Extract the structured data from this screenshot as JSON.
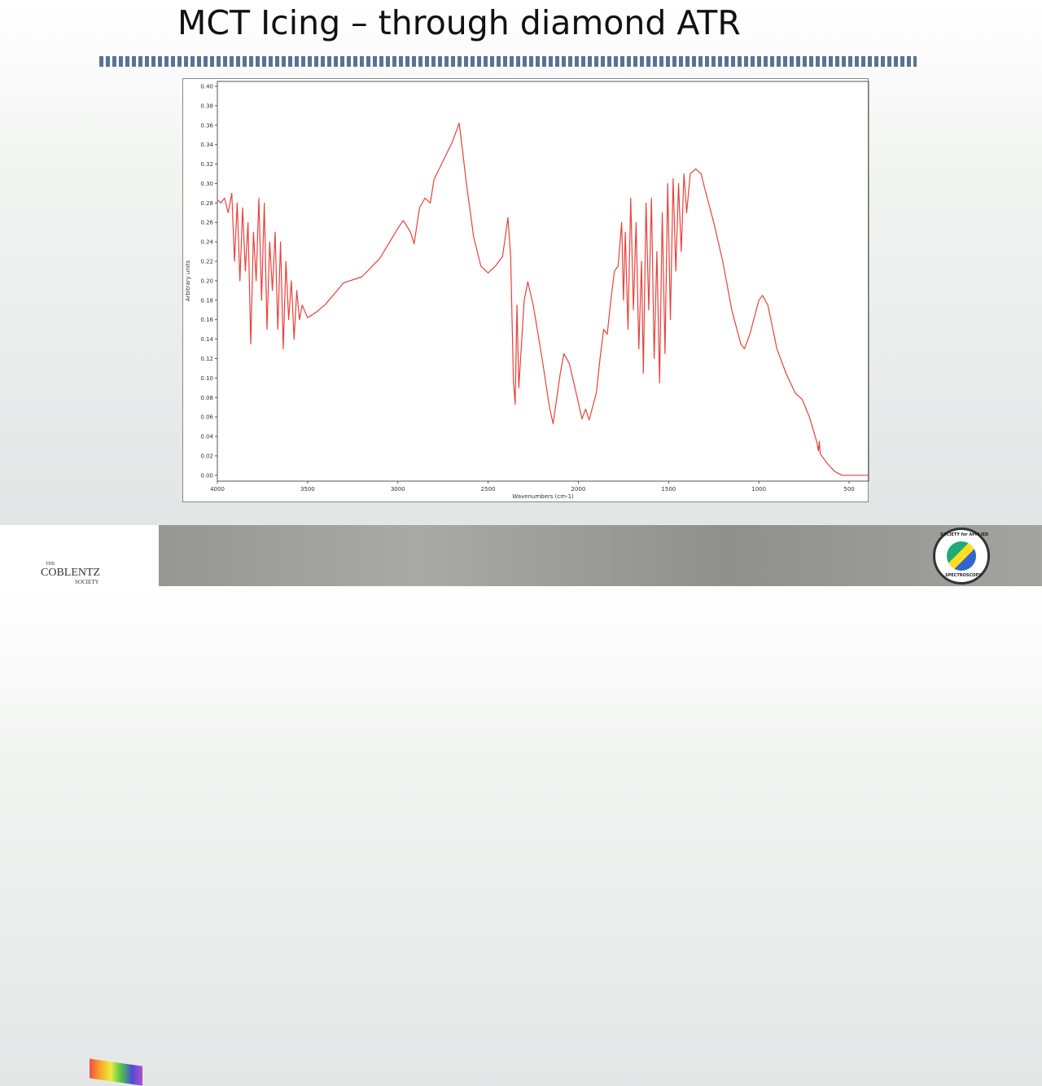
{
  "title": "MCT Icing – through diamond ATR",
  "footer": {
    "left_logo": [
      "THE",
      "COBLENTZ",
      "SOCIETY"
    ],
    "right_logo": [
      "SOCIETY for APPLIED",
      "SPECTROSCOPY"
    ]
  },
  "chart_data": {
    "type": "line",
    "x_label": "Wavenumbers (cm-1)",
    "y_label": "Arbitrary units",
    "color": "#e8413a",
    "xlim": [
      4000,
      392
    ],
    "xticks": [
      4000,
      3500,
      3000,
      2500,
      2000,
      1500,
      1000,
      500
    ],
    "ylim": [
      -0.006,
      0.405
    ],
    "yticks": [
      {
        "value": 0,
        "label": "0.00"
      },
      0.02,
      0.04,
      0.06,
      0.08,
      {
        "value": 0.1,
        "label": "0.10"
      },
      0.12,
      0.14,
      0.16,
      0.18,
      {
        "value": 0.2,
        "label": "0.20"
      },
      0.22,
      0.24,
      0.26,
      0.28,
      {
        "value": 0.3,
        "label": "0.30"
      },
      0.32,
      0.34,
      0.36,
      0.38,
      {
        "value": 0.4,
        "label": "0.40"
      }
    ],
    "x": [
      4000,
      3980,
      3960,
      3940,
      3920,
      3905,
      3890,
      3875,
      3860,
      3845,
      3830,
      3815,
      3800,
      3785,
      3770,
      3755,
      3740,
      3725,
      3710,
      3695,
      3680,
      3665,
      3650,
      3635,
      3620,
      3605,
      3590,
      3575,
      3560,
      3545,
      3530,
      3500,
      3450,
      3400,
      3300,
      3200,
      3100,
      3000,
      2970,
      2930,
      2910,
      2880,
      2850,
      2820,
      2800,
      2700,
      2660,
      2620,
      2580,
      2540,
      2500,
      2460,
      2420,
      2390,
      2375,
      2360,
      2350,
      2340,
      2330,
      2300,
      2280,
      2250,
      2200,
      2160,
      2140,
      2100,
      2080,
      2050,
      2000,
      1980,
      1960,
      1940,
      1900,
      1880,
      1860,
      1840,
      1820,
      1800,
      1780,
      1760,
      1750,
      1740,
      1725,
      1710,
      1695,
      1680,
      1665,
      1650,
      1640,
      1625,
      1610,
      1595,
      1580,
      1565,
      1550,
      1535,
      1520,
      1505,
      1490,
      1475,
      1460,
      1445,
      1430,
      1415,
      1400,
      1380,
      1350,
      1320,
      1300,
      1250,
      1200,
      1150,
      1100,
      1080,
      1050,
      1000,
      980,
      950,
      900,
      850,
      800,
      760,
      720,
      680,
      670,
      665,
      660,
      620,
      580,
      540,
      500,
      450,
      392
    ],
    "values": [
      0.283,
      0.28,
      0.285,
      0.27,
      0.29,
      0.22,
      0.28,
      0.2,
      0.275,
      0.21,
      0.26,
      0.135,
      0.25,
      0.2,
      0.285,
      0.18,
      0.28,
      0.15,
      0.24,
      0.19,
      0.25,
      0.15,
      0.24,
      0.13,
      0.22,
      0.16,
      0.2,
      0.14,
      0.19,
      0.16,
      0.175,
      0.162,
      0.168,
      0.176,
      0.198,
      0.204,
      0.223,
      0.254,
      0.262,
      0.25,
      0.238,
      0.275,
      0.285,
      0.28,
      0.304,
      0.342,
      0.362,
      0.3,
      0.245,
      0.215,
      0.208,
      0.215,
      0.225,
      0.265,
      0.225,
      0.098,
      0.073,
      0.175,
      0.09,
      0.18,
      0.199,
      0.175,
      0.119,
      0.07,
      0.053,
      0.105,
      0.125,
      0.115,
      0.075,
      0.058,
      0.068,
      0.057,
      0.085,
      0.12,
      0.15,
      0.145,
      0.18,
      0.21,
      0.215,
      0.26,
      0.18,
      0.25,
      0.15,
      0.285,
      0.17,
      0.26,
      0.13,
      0.22,
      0.105,
      0.28,
      0.17,
      0.285,
      0.12,
      0.23,
      0.095,
      0.27,
      0.125,
      0.3,
      0.16,
      0.305,
      0.21,
      0.3,
      0.23,
      0.31,
      0.27,
      0.31,
      0.315,
      0.31,
      0.295,
      0.26,
      0.22,
      0.17,
      0.135,
      0.13,
      0.145,
      0.18,
      0.185,
      0.175,
      0.13,
      0.105,
      0.085,
      0.078,
      0.06,
      0.035,
      0.025,
      0.035,
      0.022,
      0.012,
      0.004,
      0,
      0,
      0,
      0
    ]
  }
}
